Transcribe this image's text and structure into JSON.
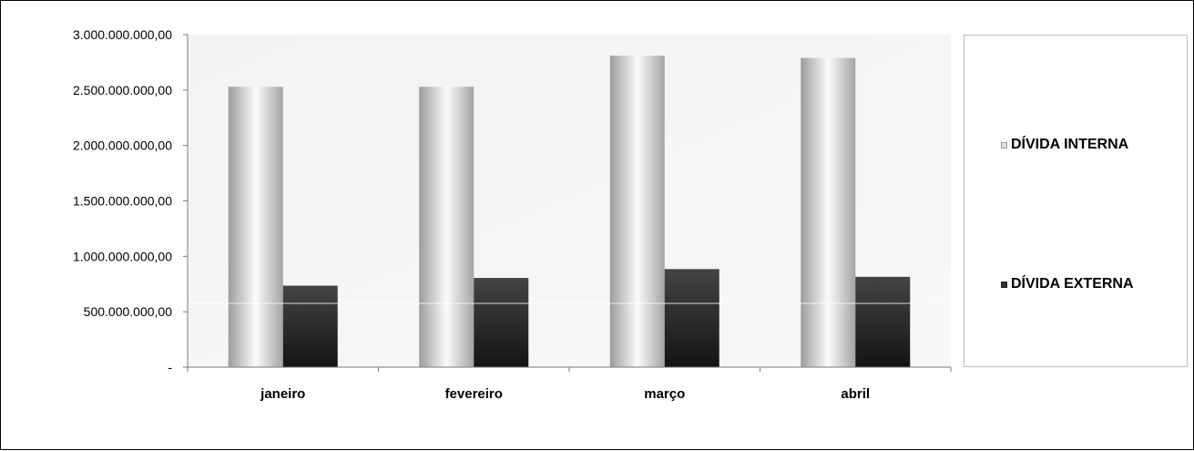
{
  "chart_data": {
    "type": "bar",
    "categories": [
      "janeiro",
      "fevereiro",
      "março",
      "abril"
    ],
    "series": [
      {
        "name": "DÍVIDA INTERNA",
        "values": [
          2530000000,
          2530000000,
          2810000000,
          2790000000
        ],
        "color": "#d9d9d9"
      },
      {
        "name": "DÍVIDA EXTERNA",
        "values": [
          735000000,
          805000000,
          885000000,
          815000000
        ],
        "color": "#333333"
      }
    ],
    "ylim": [
      0,
      3000000000
    ],
    "yticks": [
      0,
      500000000,
      1000000000,
      1500000000,
      2000000000,
      2500000000,
      3000000000
    ],
    "ytick_labels": [
      "-",
      "500.000.000,00",
      "1.000.000.000,00",
      "1.500.000.000,00",
      "2.000.000.000,00",
      "2.500.000.000,00",
      "3.000.000.000,00"
    ],
    "legend_position": "right",
    "grid": false,
    "title": "",
    "xlabel": "",
    "ylabel": ""
  }
}
